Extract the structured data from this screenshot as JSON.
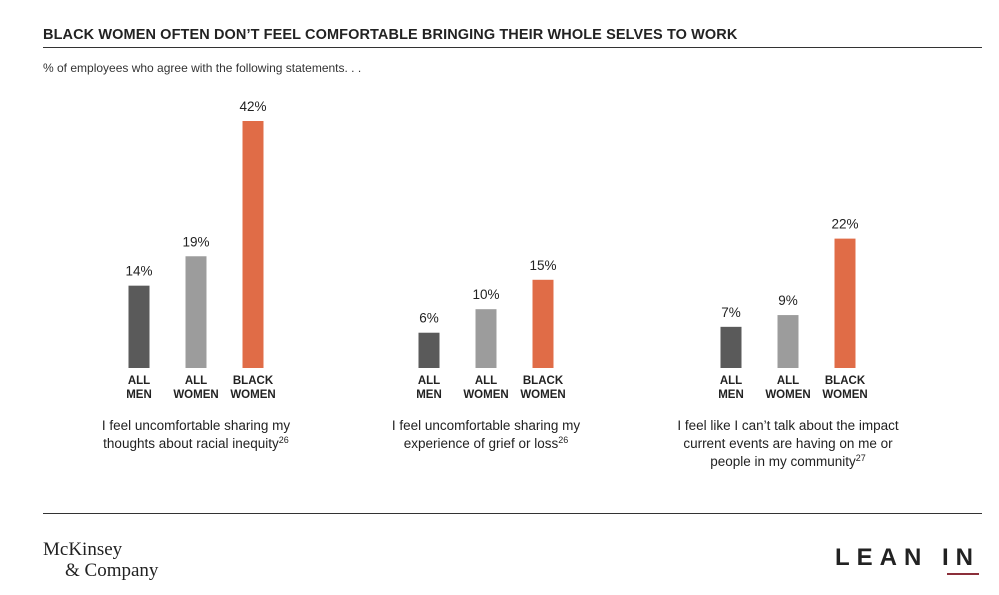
{
  "header": {
    "title": "BLACK WOMEN OFTEN DON’T FEEL COMFORTABLE BRINGING THEIR WHOLE SELVES TO WORK",
    "subtitle": "% of employees who agree with the following statements. . ."
  },
  "footer": {
    "mckinsey_line1": "McKinsey",
    "mckinsey_line2": "& Company",
    "leanin": "LEAN IN"
  },
  "colors": {
    "all_men": "#5a5a5a",
    "all_women": "#9c9c9c",
    "black_women": "#e06c47"
  },
  "chart_data": [
    {
      "type": "bar",
      "categories": [
        [
          "ALL",
          "MEN"
        ],
        [
          "ALL",
          "WOMEN"
        ],
        [
          "BLACK",
          "WOMEN"
        ]
      ],
      "values": [
        14,
        19,
        42
      ],
      "value_labels": [
        "14%",
        "19%",
        "42%"
      ],
      "caption_lines": [
        "I feel uncomfortable sharing my",
        "thoughts about racial inequity"
      ],
      "footnote": "26",
      "ylim": [
        0,
        42
      ]
    },
    {
      "type": "bar",
      "categories": [
        [
          "ALL",
          "MEN"
        ],
        [
          "ALL",
          "WOMEN"
        ],
        [
          "BLACK",
          "WOMEN"
        ]
      ],
      "values": [
        6,
        10,
        15
      ],
      "value_labels": [
        "6%",
        "10%",
        "15%"
      ],
      "caption_lines": [
        "I feel uncomfortable sharing my",
        "experience of grief or loss"
      ],
      "footnote": "26",
      "ylim": [
        0,
        42
      ]
    },
    {
      "type": "bar",
      "categories": [
        [
          "ALL",
          "MEN"
        ],
        [
          "ALL",
          "WOMEN"
        ],
        [
          "BLACK",
          "WOMEN"
        ]
      ],
      "values": [
        7,
        9,
        22
      ],
      "value_labels": [
        "7%",
        "9%",
        "22%"
      ],
      "caption_lines": [
        "I feel like I can’t talk about the impact",
        "current events are having on me or",
        "people in my community"
      ],
      "footnote": "27",
      "ylim": [
        0,
        42
      ]
    }
  ]
}
